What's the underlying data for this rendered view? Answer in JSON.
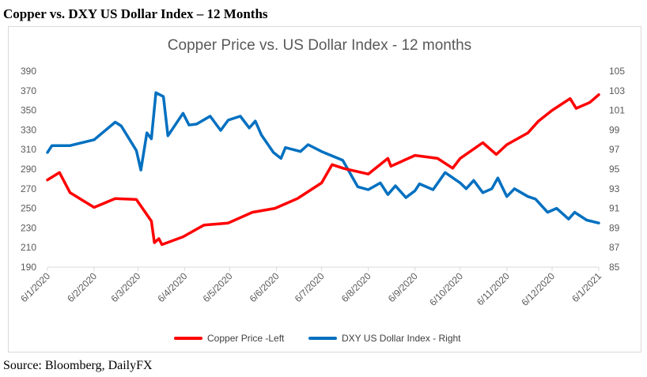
{
  "header": "Copper vs. DXY US Dollar Index – 12 Months",
  "source": "Source: Bloomberg, DailyFX",
  "chart_data": {
    "type": "line",
    "title": "Copper Price vs. US Dollar Index - 12 months",
    "x_tick_labels": [
      "6/1/2020",
      "6/2/2020",
      "6/3/2020",
      "6/4/2020",
      "6/5/2020",
      "6/6/2020",
      "6/7/2020",
      "6/8/2020",
      "6/9/2020",
      "6/10/2020",
      "6/11/2020",
      "6/12/2020",
      "6/1/2021"
    ],
    "y_left": {
      "ticks": [
        190,
        210,
        230,
        250,
        270,
        290,
        310,
        330,
        350,
        370,
        390
      ],
      "range": [
        190,
        390
      ]
    },
    "y_right": {
      "ticks": [
        85,
        87,
        89,
        91,
        93,
        95,
        97,
        99,
        101,
        103,
        105
      ],
      "range": [
        85,
        105
      ]
    },
    "grid": false,
    "legend": "bottom",
    "series": [
      {
        "name": "Copper Price -Left",
        "axis": "left",
        "color": "#ff0000",
        "points": [
          [
            "6/1/2020",
            279
          ],
          [
            "14/1/2020",
            286.5
          ],
          [
            "21/1/2020",
            266
          ],
          [
            "6/2/2020",
            251
          ],
          [
            "20/2/2020",
            260
          ],
          [
            "5/3/2020",
            259
          ],
          [
            "15/3/2020",
            237
          ],
          [
            "17/3/2020",
            215
          ],
          [
            "20/3/2020",
            219
          ],
          [
            "22/3/2020",
            213
          ],
          [
            "5/4/2020",
            221
          ],
          [
            "19/4/2020",
            233
          ],
          [
            "5/5/2020",
            235
          ],
          [
            "21/5/2020",
            246
          ],
          [
            "5/6/2020",
            250
          ],
          [
            "20/6/2020",
            260
          ],
          [
            "6/7/2020",
            276
          ],
          [
            "13/7/2020",
            294.6
          ],
          [
            "21/7/2020",
            290.6
          ],
          [
            "6/8/2020",
            285
          ],
          [
            "19/8/2020",
            301
          ],
          [
            "21/8/2020",
            293
          ],
          [
            "6/9/2020",
            304
          ],
          [
            "21/9/2020",
            301
          ],
          [
            "1/10/2020",
            291
          ],
          [
            "6/10/2020",
            301
          ],
          [
            "21/10/2020",
            317
          ],
          [
            "30/10/2020",
            305
          ],
          [
            "6/11/2020",
            315
          ],
          [
            "20/11/2020",
            327
          ],
          [
            "27/11/2020",
            339
          ],
          [
            "6/12/2020",
            350
          ],
          [
            "18/12/2020",
            362
          ],
          [
            "22/12/2020",
            352
          ],
          [
            "31/12/2020",
            358
          ],
          [
            "6/1/2021",
            366
          ]
        ]
      },
      {
        "name": "DXY US Dollar Index - Right",
        "axis": "right",
        "color": "#0070c0",
        "points": [
          [
            "6/1/2020",
            96.7
          ],
          [
            "9/1/2020",
            97.4
          ],
          [
            "21/1/2020",
            97.4
          ],
          [
            "6/2/2020",
            98.0
          ],
          [
            "20/2/2020",
            99.8
          ],
          [
            "24/2/2020",
            99.4
          ],
          [
            "5/3/2020",
            96.9
          ],
          [
            "8/3/2020",
            94.9
          ],
          [
            "12/3/2020",
            98.7
          ],
          [
            "15/3/2020",
            98.1
          ],
          [
            "18/3/2020",
            102.8
          ],
          [
            "23/3/2020",
            102.4
          ],
          [
            "26/3/2020",
            98.4
          ],
          [
            "5/4/2020",
            100.7
          ],
          [
            "9/4/2020",
            99.5
          ],
          [
            "14/4/2020",
            99.6
          ],
          [
            "23/4/2020",
            100.4
          ],
          [
            "30/4/2020",
            98.95
          ],
          [
            "5/5/2020",
            100.0
          ],
          [
            "13/5/2020",
            100.4
          ],
          [
            "19/5/2020",
            99.2
          ],
          [
            "23/5/2020",
            99.9
          ],
          [
            "27/5/2020",
            98.5
          ],
          [
            "4/6/2020",
            96.7
          ],
          [
            "9/6/2020",
            96.1
          ],
          [
            "12/6/2020",
            97.2
          ],
          [
            "22/6/2020",
            96.8
          ],
          [
            "27/6/2020",
            97.5
          ],
          [
            "6/7/2020",
            96.8
          ],
          [
            "20/7/2020",
            95.9
          ],
          [
            "30/7/2020",
            93.2
          ],
          [
            "6/8/2020",
            92.9
          ],
          [
            "14/8/2020",
            93.6
          ],
          [
            "19/8/2020",
            92.4
          ],
          [
            "24/8/2020",
            93.3
          ],
          [
            "31/8/2020",
            92.1
          ],
          [
            "6/9/2020",
            92.8
          ],
          [
            "9/9/2020",
            93.5
          ],
          [
            "18/9/2020",
            92.9
          ],
          [
            "26/9/2020",
            94.65
          ],
          [
            "6/10/2020",
            93.6
          ],
          [
            "10/10/2020",
            93.0
          ],
          [
            "15/10/2020",
            93.85
          ],
          [
            "21/10/2020",
            92.6
          ],
          [
            "27/10/2020",
            93.0
          ],
          [
            "31/10/2020",
            94.1
          ],
          [
            "6/11/2020",
            92.2
          ],
          [
            "11/11/2020",
            93.0
          ],
          [
            "20/11/2020",
            92.2
          ],
          [
            "25/11/2020",
            91.95
          ],
          [
            "3/12/2020",
            90.6
          ],
          [
            "9/12/2020",
            91.0
          ],
          [
            "17/12/2020",
            89.9
          ],
          [
            "21/12/2020",
            90.6
          ],
          [
            "29/12/2020",
            89.8
          ],
          [
            "6/1/2021",
            89.5
          ]
        ]
      }
    ]
  }
}
